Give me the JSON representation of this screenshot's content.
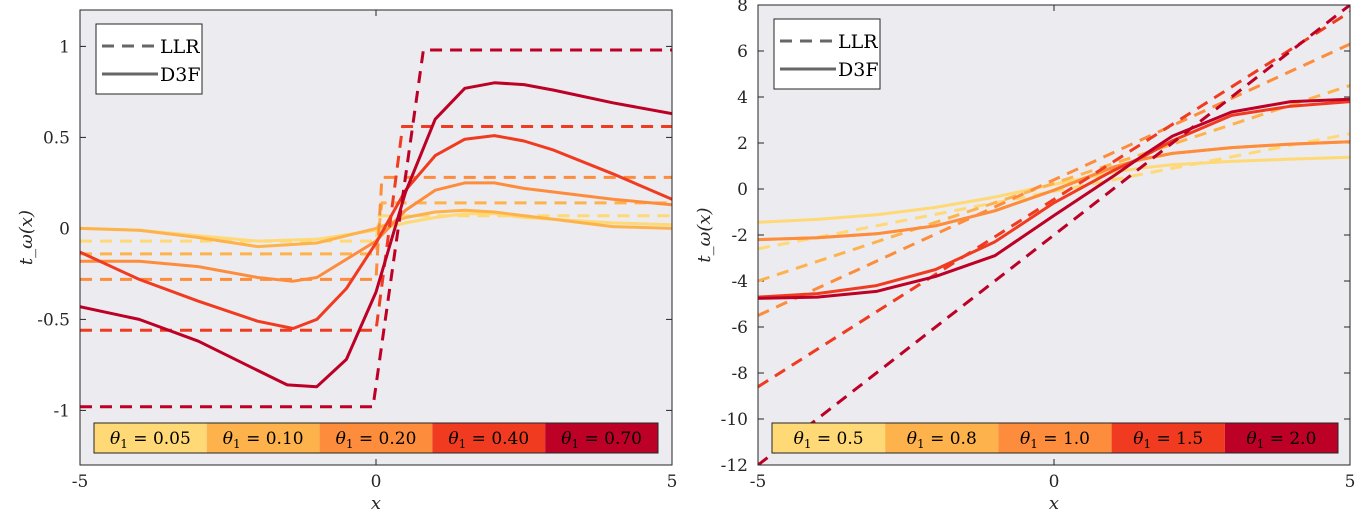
{
  "chart_data": [
    {
      "type": "line",
      "xlabel": "x",
      "ylabel": "t_ω(x)",
      "xlim": [
        -5,
        5
      ],
      "ylim": [
        -1.3,
        1.2
      ],
      "xticks": [
        -5,
        0,
        5
      ],
      "yticks": [
        -1,
        -0.5,
        0,
        0.5,
        1
      ],
      "ytick_labels": [
        "-1",
        "-0.5",
        "0",
        "0.5",
        "1"
      ],
      "background": "#ebebf0",
      "legend": {
        "placement": "top-left",
        "entries": [
          {
            "style": "dashed",
            "label": "LLR"
          },
          {
            "style": "solid",
            "label": "D3F"
          }
        ]
      },
      "colorbar": {
        "placement": "bottom",
        "labels": [
          "θ1 = 0.05",
          "θ1 = 0.10",
          "θ1 = 0.20",
          "θ1 = 0.40",
          "θ1 = 0.70"
        ]
      },
      "series": [
        {
          "theta": "0.05",
          "color": "#fed976",
          "llr": {
            "x": [
              -5,
              0,
              0.05,
              5
            ],
            "y": [
              -0.07,
              -0.07,
              0.07,
              0.07
            ]
          },
          "d3f": {
            "x": [
              -5,
              -4,
              -3,
              -2,
              -1,
              0,
              0.5,
              1,
              1.5,
              2,
              2.5,
              3,
              4,
              5
            ],
            "y": [
              0,
              -0.01,
              -0.04,
              -0.07,
              -0.06,
              -0.01,
              0.03,
              0.06,
              0.08,
              0.08,
              0.06,
              0.05,
              0.03,
              0.02
            ]
          }
        },
        {
          "theta": "0.10",
          "color": "#feb24c",
          "llr": {
            "x": [
              -5,
              0,
              0.1,
              5
            ],
            "y": [
              -0.14,
              -0.14,
              0.14,
              0.14
            ]
          },
          "d3f": {
            "x": [
              -5,
              -4,
              -3,
              -2,
              -1,
              0,
              0.5,
              1,
              1.5,
              2,
              2.5,
              3,
              4,
              5
            ],
            "y": [
              0,
              -0.01,
              -0.05,
              -0.1,
              -0.08,
              0,
              0.06,
              0.09,
              0.1,
              0.09,
              0.07,
              0.05,
              0.01,
              0
            ]
          }
        },
        {
          "theta": "0.20",
          "color": "#fd8d3c",
          "llr": {
            "x": [
              -5,
              0,
              0.1,
              5
            ],
            "y": [
              -0.28,
              -0.28,
              0.28,
              0.28
            ]
          },
          "d3f": {
            "x": [
              -5,
              -4,
              -3,
              -2,
              -1.4,
              -1,
              0,
              0.5,
              1,
              1.5,
              2,
              2.5,
              3,
              4,
              5
            ],
            "y": [
              -0.18,
              -0.18,
              -0.21,
              -0.27,
              -0.29,
              -0.27,
              -0.07,
              0.1,
              0.21,
              0.25,
              0.25,
              0.22,
              0.2,
              0.16,
              0.13
            ]
          }
        },
        {
          "theta": "0.40",
          "color": "#f03b20",
          "llr": {
            "x": [
              -5,
              0,
              0.45,
              5
            ],
            "y": [
              -0.56,
              -0.56,
              0.56,
              0.56
            ]
          },
          "d3f": {
            "x": [
              -5,
              -4,
              -3,
              -2,
              -1.4,
              -1,
              -0.5,
              0,
              0.5,
              1,
              1.5,
              2,
              2.5,
              3,
              4,
              5
            ],
            "y": [
              -0.13,
              -0.28,
              -0.4,
              -0.51,
              -0.55,
              -0.5,
              -0.33,
              -0.08,
              0.21,
              0.4,
              0.49,
              0.51,
              0.48,
              0.43,
              0.3,
              0.16
            ]
          }
        },
        {
          "theta": "0.70",
          "color": "#bd0026",
          "llr": {
            "x": [
              -5,
              -0.05,
              0.8,
              5
            ],
            "y": [
              -0.98,
              -0.98,
              0.98,
              0.98
            ]
          },
          "d3f": {
            "x": [
              -5,
              -4,
              -3,
              -2,
              -1.5,
              -1,
              -0.5,
              0,
              0.5,
              1,
              1.5,
              2,
              2.5,
              3,
              4,
              5
            ],
            "y": [
              -0.43,
              -0.5,
              -0.62,
              -0.78,
              -0.86,
              -0.87,
              -0.72,
              -0.35,
              0.2,
              0.6,
              0.77,
              0.8,
              0.79,
              0.76,
              0.69,
              0.63
            ]
          }
        }
      ]
    },
    {
      "type": "line",
      "xlabel": "x",
      "ylabel": "t_ω(x)",
      "xlim": [
        -5,
        5
      ],
      "ylim": [
        -12,
        8
      ],
      "xticks": [
        -5,
        0,
        5
      ],
      "yticks": [
        -12,
        -10,
        -8,
        -6,
        -4,
        -2,
        0,
        2,
        4,
        6,
        8
      ],
      "ytick_labels": [
        "-12",
        "-10",
        "-8",
        "-6",
        "-4",
        "-2",
        "0",
        "2",
        "4",
        "6",
        "8"
      ],
      "background": "#ebebf0",
      "legend": {
        "placement": "top-left",
        "entries": [
          {
            "style": "dashed",
            "label": "LLR"
          },
          {
            "style": "solid",
            "label": "D3F"
          }
        ]
      },
      "colorbar": {
        "placement": "bottom",
        "labels": [
          "θ1 = 0.5",
          "θ1 = 0.8",
          "θ1 = 1.0",
          "θ1 = 1.5",
          "θ1 = 2.0"
        ]
      },
      "series": [
        {
          "theta": "0.5",
          "color": "#fed976",
          "llr": {
            "x": [
              -5,
              5
            ],
            "y": [
              -2.6,
              2.4
            ]
          },
          "d3f": {
            "x": [
              -5,
              -4,
              -3,
              -2,
              -1,
              0,
              1,
              1.5,
              2,
              3,
              4,
              5
            ],
            "y": [
              -1.45,
              -1.32,
              -1.12,
              -0.8,
              -0.35,
              0.2,
              0.72,
              0.92,
              1.05,
              1.2,
              1.3,
              1.38
            ]
          }
        },
        {
          "theta": "0.8",
          "color": "#feb24c",
          "llr": {
            "x": [
              -5,
              5
            ],
            "y": [
              -4.0,
              4.5
            ]
          },
          "d3f": {
            "x": [
              -5,
              -4,
              -3,
              -2,
              -1,
              0,
              1,
              1.5,
              2,
              3,
              4,
              5
            ],
            "y": [
              -2.2,
              -2.12,
              -1.95,
              -1.6,
              -0.95,
              -0.05,
              0.95,
              1.3,
              1.55,
              1.8,
              1.95,
              2.05
            ]
          }
        },
        {
          "theta": "1.0",
          "color": "#fd8d3c",
          "llr": {
            "x": [
              -5,
              5
            ],
            "y": [
              -5.5,
              6.3
            ]
          },
          "d3f": {
            "x": [
              -5,
              -4,
              -3,
              -2,
              -1,
              0,
              1,
              1.5,
              2,
              3,
              4,
              5
            ],
            "y": [
              -2.2,
              -2.12,
              -1.95,
              -1.6,
              -0.95,
              -0.05,
              0.95,
              1.3,
              1.55,
              1.8,
              1.95,
              2.05
            ]
          }
        },
        {
          "theta": "1.5",
          "color": "#f03b20",
          "llr": {
            "x": [
              -5,
              5
            ],
            "y": [
              -8.6,
              7.7
            ]
          },
          "d3f": {
            "x": [
              -5,
              -4,
              -3,
              -2,
              -1,
              0,
              1,
              1.5,
              2,
              3,
              4,
              5
            ],
            "y": [
              -4.7,
              -4.55,
              -4.2,
              -3.5,
              -2.3,
              -0.6,
              0.8,
              1.4,
              2.1,
              3.2,
              3.6,
              3.8
            ]
          }
        },
        {
          "theta": "2.0",
          "color": "#bd0026",
          "llr": {
            "x": [
              -5,
              5
            ],
            "y": [
              -12,
              8
            ]
          },
          "d3f": {
            "x": [
              -5,
              -4,
              -3,
              -2,
              -1,
              0,
              1,
              1.5,
              2,
              3,
              4,
              5
            ],
            "y": [
              -4.75,
              -4.7,
              -4.45,
              -3.8,
              -2.9,
              -1.15,
              0.55,
              1.45,
              2.3,
              3.35,
              3.8,
              3.9
            ]
          }
        }
      ]
    }
  ]
}
